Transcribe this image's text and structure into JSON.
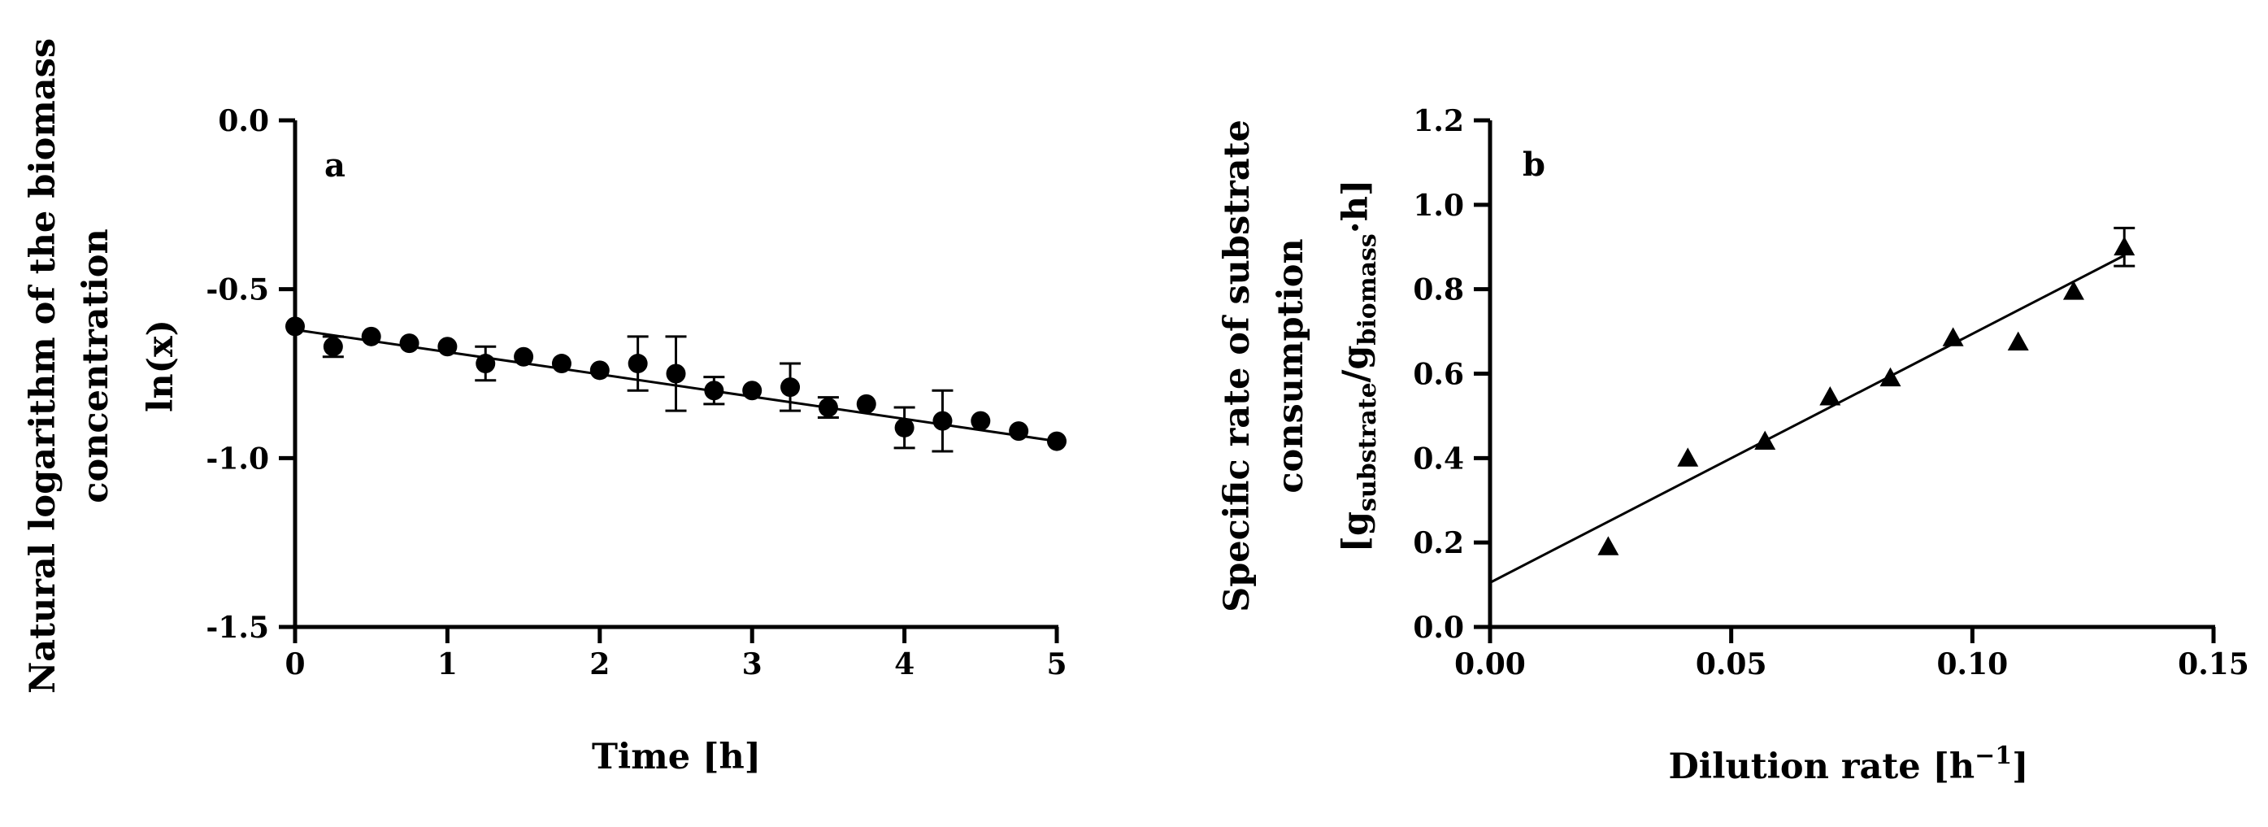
{
  "chart_data": [
    {
      "type": "scatter",
      "panel_label": "a",
      "xlabel": "Time [h]",
      "ylabel_lines": [
        "Natural logarithm of the biomass",
        "concentration",
        "ln(x)"
      ],
      "xlim": [
        0,
        5
      ],
      "ylim": [
        -1.5,
        0.0
      ],
      "xticks": [
        0,
        1,
        2,
        3,
        4,
        5
      ],
      "xtick_labels": [
        "0",
        "1",
        "2",
        "3",
        "4",
        "5"
      ],
      "yticks": [
        0.0,
        -0.5,
        -1.0,
        -1.5
      ],
      "ytick_labels": [
        "0.0",
        "-0.5",
        "-1.0",
        "-1.5"
      ],
      "marker": "circle",
      "points": [
        {
          "x": 0.0,
          "y": -0.61,
          "err": 0
        },
        {
          "x": 0.25,
          "y": -0.67,
          "err": 0.03
        },
        {
          "x": 0.5,
          "y": -0.64,
          "err": 0
        },
        {
          "x": 0.75,
          "y": -0.66,
          "err": 0
        },
        {
          "x": 1.0,
          "y": -0.67,
          "err": 0
        },
        {
          "x": 1.25,
          "y": -0.72,
          "err": 0.05
        },
        {
          "x": 1.5,
          "y": -0.7,
          "err": 0
        },
        {
          "x": 1.75,
          "y": -0.72,
          "err": 0
        },
        {
          "x": 2.0,
          "y": -0.74,
          "err": 0
        },
        {
          "x": 2.25,
          "y": -0.72,
          "err": 0.08
        },
        {
          "x": 2.5,
          "y": -0.75,
          "err": 0.11
        },
        {
          "x": 2.75,
          "y": -0.8,
          "err": 0.04
        },
        {
          "x": 3.0,
          "y": -0.8,
          "err": 0
        },
        {
          "x": 3.25,
          "y": -0.79,
          "err": 0.07
        },
        {
          "x": 3.5,
          "y": -0.85,
          "err": 0.03
        },
        {
          "x": 3.75,
          "y": -0.84,
          "err": 0
        },
        {
          "x": 4.0,
          "y": -0.91,
          "err": 0.06
        },
        {
          "x": 4.25,
          "y": -0.89,
          "err": 0.09
        },
        {
          "x": 4.5,
          "y": -0.89,
          "err": 0
        },
        {
          "x": 4.75,
          "y": -0.92,
          "err": 0
        },
        {
          "x": 5.0,
          "y": -0.95,
          "err": 0
        }
      ],
      "fit_line": {
        "x": [
          0,
          5
        ],
        "y": [
          -0.62,
          -0.95
        ]
      }
    },
    {
      "type": "scatter",
      "panel_label": "b",
      "xlabel": "Dilution rate [h",
      "xlabel_sup": "−1",
      "xlabel_end": "]",
      "ylabel_lines": [
        "Specific rate of substrate",
        "consumption"
      ],
      "ylabel_unit": {
        "open": "[g",
        "sub1": "substrate",
        "mid": "/g",
        "sub2": "biomass",
        "close": "·h]"
      },
      "xlim": [
        0.0,
        0.15
      ],
      "ylim": [
        0.0,
        1.2
      ],
      "xticks": [
        0.0,
        0.05,
        0.1,
        0.15
      ],
      "xtick_labels": [
        "0.00",
        "0.05",
        "0.10",
        "0.15"
      ],
      "yticks": [
        0.0,
        0.2,
        0.4,
        0.6,
        0.8,
        1.0,
        1.2
      ],
      "ytick_labels": [
        "0.0",
        "0.2",
        "0.4",
        "0.6",
        "0.8",
        "1.0",
        "1.2"
      ],
      "marker": "triangle",
      "points": [
        {
          "x": 0.0245,
          "y": 0.19,
          "err": 0
        },
        {
          "x": 0.041,
          "y": 0.4,
          "err": 0
        },
        {
          "x": 0.057,
          "y": 0.44,
          "err": 0
        },
        {
          "x": 0.0705,
          "y": 0.545,
          "err": 0
        },
        {
          "x": 0.083,
          "y": 0.59,
          "err": 0
        },
        {
          "x": 0.096,
          "y": 0.685,
          "err": 0
        },
        {
          "x": 0.1095,
          "y": 0.675,
          "err": 0
        },
        {
          "x": 0.121,
          "y": 0.795,
          "err": 0
        },
        {
          "x": 0.1315,
          "y": 0.9,
          "err": 0.045
        }
      ],
      "fit_line": {
        "x": [
          0,
          0.1315
        ],
        "y": [
          0.105,
          0.88
        ]
      }
    }
  ]
}
